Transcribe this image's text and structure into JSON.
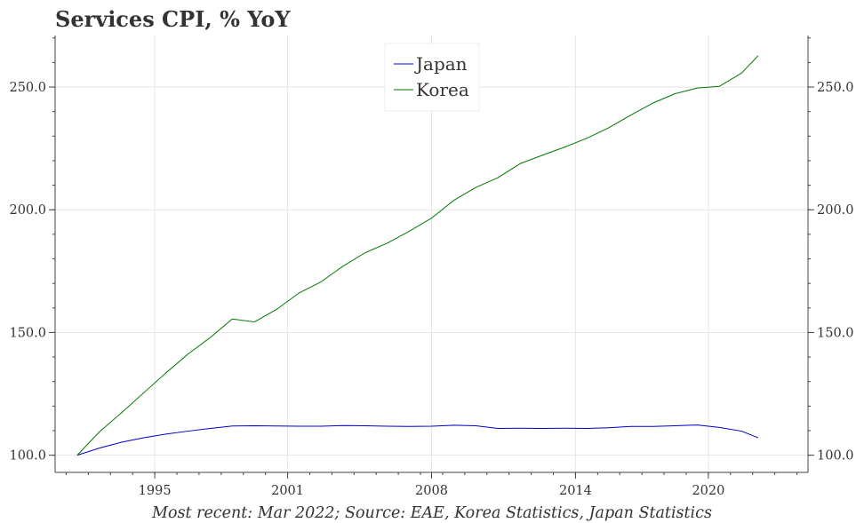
{
  "chart_data": {
    "type": "line",
    "title": "Services CPI, % YoY",
    "source_note": "Most recent: Mar 2022; Source: EAE, Korea Statistics, Japan Statistics",
    "xlabel": "",
    "ylabel": "",
    "x_ticks": [
      "1995",
      "2001",
      "2008",
      "2014",
      "2020"
    ],
    "x_tick_values": [
      1995,
      2001,
      2007.5,
      2014,
      2020
    ],
    "y_ticks": [
      "100.0",
      "150.0",
      "200.0",
      "250.0"
    ],
    "y_tick_values": [
      100,
      150,
      200,
      250
    ],
    "xlim": [
      1990.5,
      2024.5
    ],
    "ylim": [
      93,
      271
    ],
    "grid": true,
    "legend_position": "top-center",
    "x": [
      1991.5,
      1992.5,
      1993.5,
      1994.5,
      1995.5,
      1996.5,
      1997.5,
      1998.5,
      1999.5,
      2000.5,
      2001.5,
      2002.5,
      2003.5,
      2004.5,
      2005.5,
      2006.5,
      2007.5,
      2008.5,
      2009.5,
      2010.5,
      2011.5,
      2012.5,
      2013.5,
      2014.5,
      2015.5,
      2016.5,
      2017.5,
      2018.5,
      2019.5,
      2020.5,
      2021.5,
      2022.25
    ],
    "series": [
      {
        "name": "Japan",
        "color": "#0000cc",
        "values": [
          100.0,
          102.9,
          105.3,
          107.1,
          108.6,
          109.8,
          110.9,
          111.9,
          112.0,
          111.9,
          111.8,
          111.8,
          112.1,
          112.0,
          111.8,
          111.7,
          111.8,
          112.2,
          112.0,
          110.9,
          111.0,
          110.9,
          111.0,
          110.9,
          111.2,
          111.7,
          111.7,
          112.0,
          112.3,
          111.3,
          109.8,
          107.1
        ]
      },
      {
        "name": "Korea",
        "color": "#007700",
        "values": [
          100.0,
          109.5,
          117.3,
          125.4,
          133.5,
          141.2,
          147.9,
          155.5,
          154.3,
          159.4,
          166.0,
          170.6,
          177.0,
          182.5,
          186.4,
          191.3,
          196.6,
          203.8,
          209.1,
          213.1,
          218.8,
          222.2,
          225.5,
          229.1,
          233.4,
          238.6,
          243.5,
          247.3,
          249.6,
          250.3,
          255.7,
          262.8
        ]
      }
    ]
  }
}
